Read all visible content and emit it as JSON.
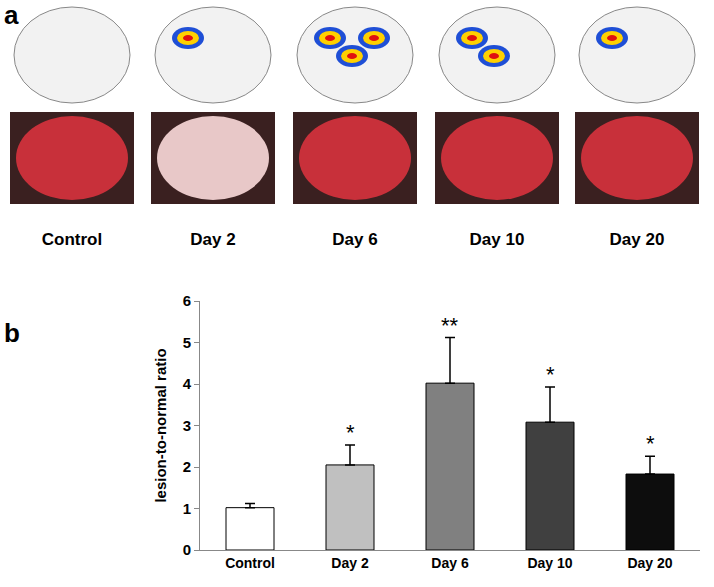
{
  "figure_a": {
    "label": "a",
    "captions": [
      "Control",
      "Day 2",
      "Day 6",
      "Day 10",
      "Day 20"
    ]
  },
  "chart_data": {
    "label": "b",
    "type": "bar",
    "categories": [
      "Control",
      "Day 2",
      "Day 6",
      "Day 10",
      "Day 20"
    ],
    "values": [
      1.02,
      2.05,
      4.02,
      3.08,
      1.83
    ],
    "errors": [
      0.1,
      0.48,
      1.1,
      0.85,
      0.43
    ],
    "colors": [
      "#ffffff",
      "#c0c0c0",
      "#808080",
      "#404040",
      "#0d0d0d"
    ],
    "y_label": "lesion-to-normal ratio",
    "ylim": [
      0,
      6
    ],
    "yticks": [
      0,
      1,
      2,
      3,
      4,
      5,
      6
    ],
    "grid": false,
    "annotations": [
      {
        "category": "Day 2",
        "text": "*"
      },
      {
        "category": "Day 6",
        "text": "**"
      },
      {
        "category": "Day 10",
        "text": "*"
      },
      {
        "category": "Day 20",
        "text": "*"
      }
    ]
  }
}
